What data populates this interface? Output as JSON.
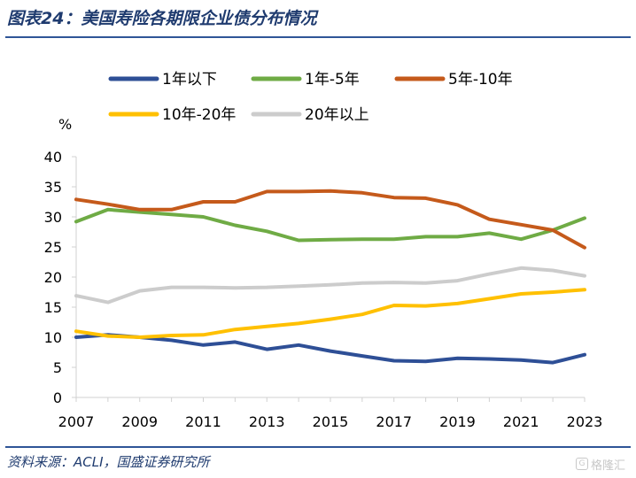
{
  "header": {
    "title": "图表24：美国寿险各期限企业债分布情况"
  },
  "footer": {
    "source": "资料来源：ACLI，国盛证券研究所",
    "watermark": "格隆汇"
  },
  "chart_data": {
    "type": "line",
    "title": "图表24：美国寿险各期限企业债分布情况",
    "ylabel": "%",
    "xlabel": "",
    "ylim": [
      0,
      40
    ],
    "yticks": [
      0,
      5,
      10,
      15,
      20,
      25,
      30,
      35,
      40
    ],
    "xlim": [
      2007,
      2023
    ],
    "xticks": [
      2007,
      2009,
      2011,
      2013,
      2015,
      2017,
      2019,
      2021,
      2023
    ],
    "grid": false,
    "legend_position": "top",
    "x": [
      2007,
      2008,
      2009,
      2010,
      2011,
      2012,
      2013,
      2014,
      2015,
      2016,
      2017,
      2018,
      2019,
      2020,
      2021,
      2022,
      2023
    ],
    "series": [
      {
        "name": "1年以下",
        "color": "#2e4f96",
        "values": [
          10.0,
          10.4,
          10.0,
          9.5,
          8.7,
          9.2,
          8.0,
          8.7,
          7.7,
          6.9,
          6.1,
          6.0,
          6.5,
          6.4,
          6.2,
          5.8,
          7.1
        ]
      },
      {
        "name": "1年-5年",
        "color": "#6fab45",
        "values": [
          29.2,
          31.2,
          30.8,
          30.4,
          30.0,
          28.6,
          27.6,
          26.1,
          26.2,
          26.3,
          26.3,
          26.7,
          26.7,
          27.3,
          26.3,
          27.8,
          29.8
        ]
      },
      {
        "name": "5年-10年",
        "color": "#c55a1b",
        "values": [
          32.9,
          32.1,
          31.2,
          31.2,
          32.5,
          32.5,
          34.2,
          34.2,
          34.3,
          34.0,
          33.2,
          33.1,
          32.0,
          29.6,
          28.7,
          27.8,
          24.9
        ]
      },
      {
        "name": "10年-20年",
        "color": "#ffc000",
        "values": [
          11.0,
          10.2,
          10.0,
          10.3,
          10.4,
          11.3,
          11.8,
          12.3,
          13.0,
          13.8,
          15.3,
          15.2,
          15.6,
          16.4,
          17.2,
          17.5,
          17.9
        ]
      },
      {
        "name": "20年以上",
        "color": "#cccccc",
        "values": [
          16.9,
          15.8,
          17.7,
          18.3,
          18.3,
          18.2,
          18.3,
          18.5,
          18.7,
          19.0,
          19.1,
          19.0,
          19.4,
          20.5,
          21.5,
          21.1,
          20.2
        ]
      }
    ]
  }
}
